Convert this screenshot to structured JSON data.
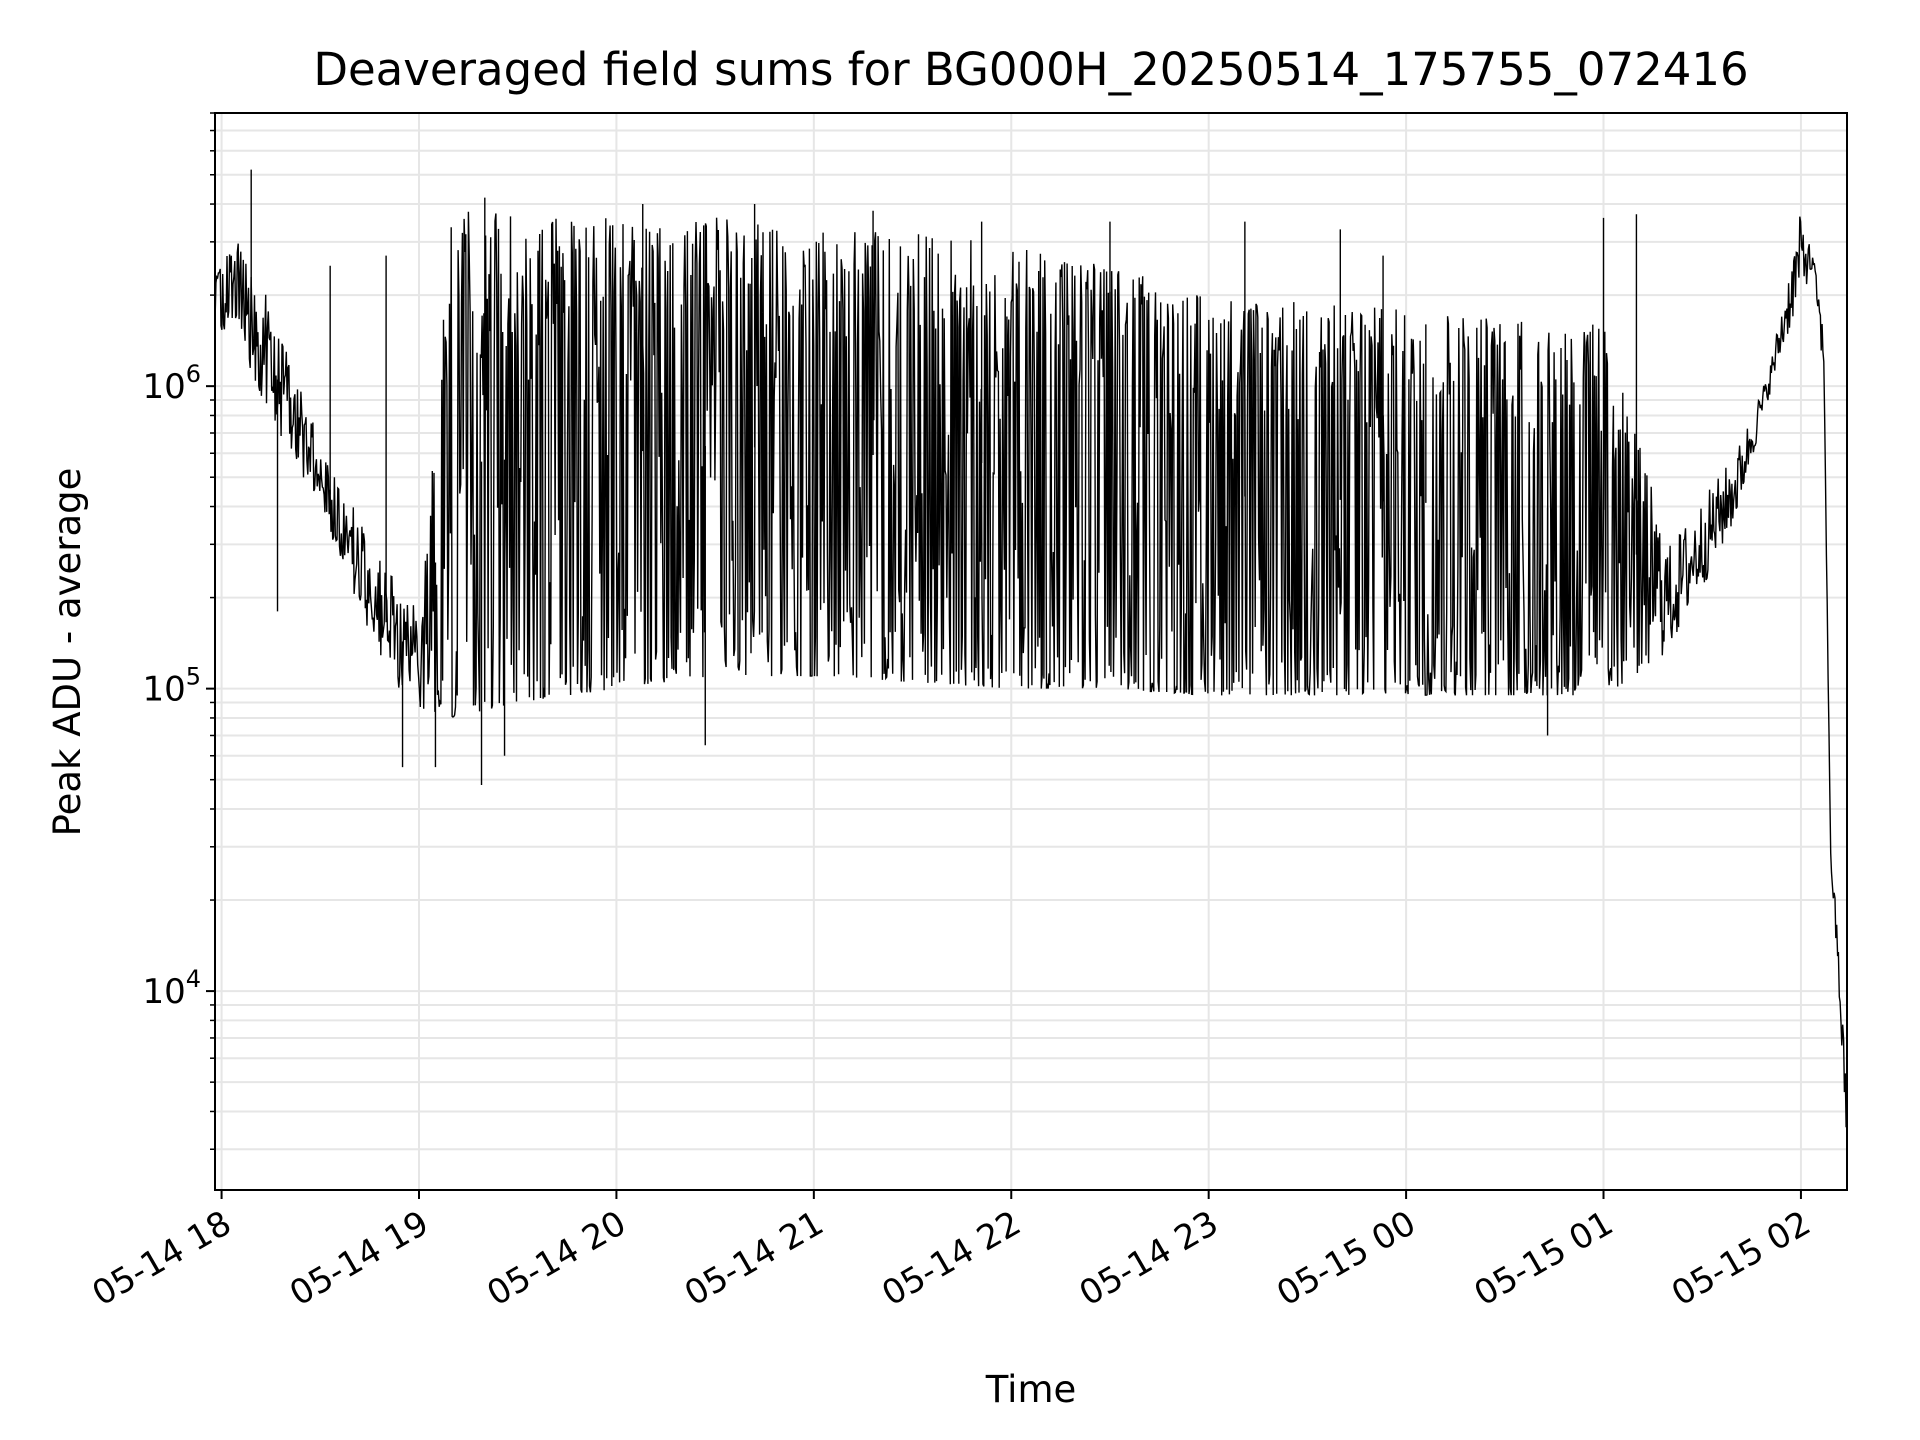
{
  "chart_data": {
    "type": "line",
    "title": "Deaveraged field sums for BG000H_20250514_175755_072416",
    "xlabel": "Time",
    "ylabel": "Peak ADU - average",
    "yscale": "log",
    "ylim": [
      2200,
      8000000
    ],
    "xlim": [
      "2025-05-14 17:58",
      "2025-05-15 02:14"
    ],
    "grid": true,
    "line_color": "#000000",
    "grid_color": "#e6e6e6",
    "x_ticks": [
      {
        "x": "2025-05-14 18:00",
        "label": "05-14 18"
      },
      {
        "x": "2025-05-14 19:00",
        "label": "05-14 19"
      },
      {
        "x": "2025-05-14 20:00",
        "label": "05-14 20"
      },
      {
        "x": "2025-05-14 21:00",
        "label": "05-14 21"
      },
      {
        "x": "2025-05-14 22:00",
        "label": "05-14 22"
      },
      {
        "x": "2025-05-14 23:00",
        "label": "05-14 23"
      },
      {
        "x": "2025-05-15 00:00",
        "label": "05-15 00"
      },
      {
        "x": "2025-05-15 01:00",
        "label": "05-15 01"
      },
      {
        "x": "2025-05-15 02:00",
        "label": "05-15 02"
      }
    ],
    "y_ticks": [
      {
        "value": 10000,
        "base": "10",
        "exp": "4"
      },
      {
        "value": 100000,
        "base": "10",
        "exp": "5"
      },
      {
        "value": 1000000,
        "base": "10",
        "exp": "6"
      }
    ],
    "series": [
      {
        "envelope": [
          {
            "x": "2025-05-14 17:58",
            "low": 1500000,
            "high": 2400000
          },
          {
            "x": "2025-05-14 18:05",
            "low": 1500000,
            "high": 3000000
          },
          {
            "x": "2025-05-14 18:12",
            "low": 900000,
            "high": 2200000
          },
          {
            "x": "2025-05-14 18:20",
            "low": 600000,
            "high": 1300000
          },
          {
            "x": "2025-05-14 18:30",
            "low": 400000,
            "high": 700000
          },
          {
            "x": "2025-05-14 18:40",
            "low": 200000,
            "high": 400000
          },
          {
            "x": "2025-05-14 18:50",
            "low": 110000,
            "high": 250000
          },
          {
            "x": "2025-05-14 19:00",
            "low": 85000,
            "high": 180000
          },
          {
            "x": "2025-05-14 19:10",
            "low": 80000,
            "high": 3800000
          },
          {
            "x": "2025-05-14 19:30",
            "low": 90000,
            "high": 3700000
          },
          {
            "x": "2025-05-14 20:00",
            "low": 100000,
            "high": 3600000
          },
          {
            "x": "2025-05-14 20:30",
            "low": 110000,
            "high": 3700000
          },
          {
            "x": "2025-05-14 21:00",
            "low": 110000,
            "high": 3400000
          },
          {
            "x": "2025-05-14 21:30",
            "low": 105000,
            "high": 3200000
          },
          {
            "x": "2025-05-14 22:00",
            "low": 100000,
            "high": 3000000
          },
          {
            "x": "2025-05-14 22:30",
            "low": 100000,
            "high": 2500000
          },
          {
            "x": "2025-05-14 23:00",
            "low": 95000,
            "high": 2000000
          },
          {
            "x": "2025-05-15 00:00",
            "low": 95000,
            "high": 1800000
          },
          {
            "x": "2025-05-15 01:00",
            "low": 95000,
            "high": 1600000
          },
          {
            "x": "2025-05-15 01:20",
            "low": 130000,
            "high": 300000
          },
          {
            "x": "2025-05-15 01:40",
            "low": 350000,
            "high": 600000
          },
          {
            "x": "2025-05-15 01:50",
            "low": 900000,
            "high": 1100000
          },
          {
            "x": "2025-05-15 02:00",
            "low": 2000000,
            "high": 3800000
          },
          {
            "x": "2025-05-15 02:04",
            "low": 2400000,
            "high": 2600000
          },
          {
            "x": "2025-05-15 02:07",
            "low": 1000000,
            "high": 1500000
          },
          {
            "x": "2025-05-15 02:09",
            "low": 27000,
            "high": 30000
          },
          {
            "x": "2025-05-15 02:11",
            "low": 12000,
            "high": 17000
          },
          {
            "x": "2025-05-15 02:14",
            "low": 3000,
            "high": 4500
          }
        ],
        "spikes": [
          {
            "x": "2025-05-14 18:09",
            "value": 5200000
          },
          {
            "x": "2025-05-14 18:17",
            "value": 180000
          },
          {
            "x": "2025-05-14 18:33",
            "value": 2500000
          },
          {
            "x": "2025-05-14 18:50",
            "value": 2700000
          },
          {
            "x": "2025-05-14 18:55",
            "value": 55000
          },
          {
            "x": "2025-05-14 19:05",
            "value": 55000
          },
          {
            "x": "2025-05-14 19:19",
            "value": 48000
          },
          {
            "x": "2025-05-14 19:26",
            "value": 60000
          },
          {
            "x": "2025-05-14 19:20",
            "value": 4200000
          },
          {
            "x": "2025-05-14 20:08",
            "value": 4000000
          },
          {
            "x": "2025-05-14 20:27",
            "value": 65000
          },
          {
            "x": "2025-05-14 20:42",
            "value": 4000000
          },
          {
            "x": "2025-05-14 21:18",
            "value": 3800000
          },
          {
            "x": "2025-05-14 21:51",
            "value": 3500000
          },
          {
            "x": "2025-05-14 22:30",
            "value": 3500000
          },
          {
            "x": "2025-05-14 23:11",
            "value": 3500000
          },
          {
            "x": "2025-05-14 23:40",
            "value": 3300000
          },
          {
            "x": "2025-05-14 23:53",
            "value": 2700000
          },
          {
            "x": "2025-05-15 00:06",
            "value": 1600000
          },
          {
            "x": "2025-05-15 00:43",
            "value": 70000
          },
          {
            "x": "2025-05-15 01:00",
            "value": 3600000
          },
          {
            "x": "2025-05-15 01:10",
            "value": 3700000
          }
        ]
      }
    ]
  }
}
